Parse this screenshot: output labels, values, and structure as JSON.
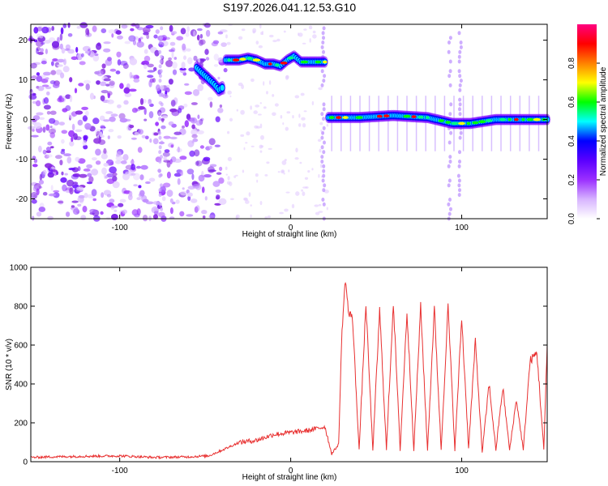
{
  "title": "S197.2026.041.12.53.G10",
  "chart_data": [
    {
      "type": "heatmap",
      "xlabel": "Height of straight line (km)",
      "ylabel": "Frequency (Hz)",
      "xlim": [
        -152,
        150
      ],
      "ylim": [
        -25,
        24
      ],
      "xticks": [
        -100,
        0,
        100
      ],
      "yticks": [
        -20,
        -10,
        0,
        10,
        20
      ],
      "colorbar": {
        "label": "Normalized spectral amplitude",
        "range": [
          0,
          1
        ],
        "ticks": [
          "0.0",
          "0.2",
          "0.4",
          "0.6",
          "0.8"
        ],
        "colors": [
          "#ffffff",
          "#d7b4ff",
          "#9b30ff",
          "#5a00ff",
          "#0000ff",
          "#00ffff",
          "#00ff00",
          "#ffff00",
          "#ff8000",
          "#ff0000",
          "#ff0080"
        ]
      },
      "features": [
        {
          "name": "noise",
          "x_range": [
            -152,
            -38
          ],
          "freq_range": [
            -25,
            24
          ]
        },
        {
          "name": "tone-descending",
          "x": [
            -55,
            -50,
            -45,
            -42,
            -40
          ],
          "freq": [
            13,
            11,
            9,
            7.5,
            8
          ]
        },
        {
          "name": "tone-high",
          "x": [
            -38,
            -30,
            -25,
            -20,
            -15,
            -10,
            -6,
            -2,
            2,
            6,
            12,
            20
          ],
          "freq": [
            15,
            15,
            15.5,
            15,
            14,
            14,
            13.5,
            15,
            16,
            14.5,
            14.5,
            14.5
          ]
        },
        {
          "name": "tone-zero",
          "x": [
            22,
            40,
            60,
            80,
            95,
            105,
            120,
            140,
            150
          ],
          "freq": [
            0.5,
            0.5,
            1,
            0.5,
            -1,
            -1,
            0,
            0,
            0
          ]
        },
        {
          "name": "vertical-streaks",
          "x": [
            -76,
            19,
            93,
            99
          ]
        }
      ]
    },
    {
      "type": "line",
      "xlabel": "Height of straight line (km)",
      "ylabel": "SNR (10 * v/v)",
      "xlim": [
        -152,
        150
      ],
      "ylim": [
        0,
        1000
      ],
      "xticks": [
        -100,
        0,
        100
      ],
      "yticks": [
        0,
        200,
        400,
        600,
        800,
        1000
      ],
      "color": "#e83030",
      "x": [
        -152,
        -140,
        -120,
        -100,
        -80,
        -60,
        -48,
        -40,
        -30,
        -20,
        -10,
        0,
        10,
        20,
        24,
        28,
        30,
        32,
        34,
        36,
        40,
        44,
        48,
        52,
        56,
        60,
        64,
        68,
        72,
        76,
        80,
        84,
        88,
        92,
        96,
        100,
        104,
        108,
        112,
        116,
        120,
        124,
        128,
        132,
        136,
        140,
        144,
        148,
        150
      ],
      "values": [
        22,
        25,
        28,
        30,
        22,
        25,
        30,
        60,
        100,
        110,
        140,
        150,
        160,
        180,
        40,
        90,
        680,
        940,
        750,
        760,
        60,
        810,
        60,
        780,
        60,
        820,
        60,
        770,
        60,
        800,
        60,
        790,
        60,
        800,
        60,
        740,
        70,
        620,
        50,
        400,
        60,
        380,
        60,
        320,
        60,
        520,
        560,
        60,
        600
      ]
    }
  ]
}
